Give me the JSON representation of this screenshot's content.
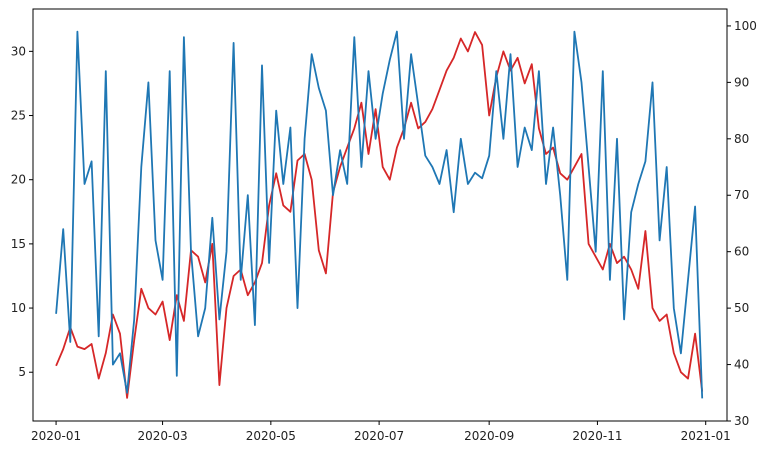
{
  "chart_data": {
    "type": "line",
    "title": "",
    "xlabel": "",
    "ylabel": "",
    "y2label": "",
    "grid": false,
    "xlim": [
      "2019-12-19",
      "2021-01-13"
    ],
    "ylim_left": [
      1.2,
      33.3
    ],
    "ylim_right": [
      30,
      103
    ],
    "x_ticks": [
      "2020-01",
      "2020-03",
      "2020-05",
      "2020-07",
      "2020-09",
      "2020-11",
      "2021-01"
    ],
    "x_tick_dates": [
      "2020-01-01",
      "2020-03-01",
      "2020-05-01",
      "2020-07-01",
      "2020-09-01",
      "2020-11-01",
      "2021-01-01"
    ],
    "y_ticks_left": [
      5,
      10,
      15,
      20,
      25,
      30
    ],
    "y_ticks_right": [
      30,
      40,
      50,
      60,
      70,
      80,
      90,
      100
    ],
    "x": [
      "2020-01-01",
      "2020-01-05",
      "2020-01-09",
      "2020-01-13",
      "2020-01-17",
      "2020-01-21",
      "2020-01-25",
      "2020-01-29",
      "2020-02-02",
      "2020-02-06",
      "2020-02-10",
      "2020-02-14",
      "2020-02-18",
      "2020-02-22",
      "2020-02-26",
      "2020-03-01",
      "2020-03-05",
      "2020-03-09",
      "2020-03-13",
      "2020-03-17",
      "2020-03-21",
      "2020-03-25",
      "2020-03-29",
      "2020-04-02",
      "2020-04-06",
      "2020-04-10",
      "2020-04-14",
      "2020-04-18",
      "2020-04-22",
      "2020-04-26",
      "2020-04-30",
      "2020-05-04",
      "2020-05-08",
      "2020-05-12",
      "2020-05-16",
      "2020-05-20",
      "2020-05-24",
      "2020-05-28",
      "2020-06-01",
      "2020-06-05",
      "2020-06-09",
      "2020-06-13",
      "2020-06-17",
      "2020-06-21",
      "2020-06-25",
      "2020-06-29",
      "2020-07-03",
      "2020-07-07",
      "2020-07-11",
      "2020-07-15",
      "2020-07-19",
      "2020-07-23",
      "2020-07-27",
      "2020-07-31",
      "2020-08-04",
      "2020-08-08",
      "2020-08-12",
      "2020-08-16",
      "2020-08-20",
      "2020-08-24",
      "2020-08-28",
      "2020-09-01",
      "2020-09-05",
      "2020-09-09",
      "2020-09-13",
      "2020-09-17",
      "2020-09-21",
      "2020-09-25",
      "2020-09-29",
      "2020-10-03",
      "2020-10-07",
      "2020-10-11",
      "2020-10-15",
      "2020-10-19",
      "2020-10-23",
      "2020-10-27",
      "2020-10-31",
      "2020-11-04",
      "2020-11-08",
      "2020-11-12",
      "2020-11-16",
      "2020-11-20",
      "2020-11-24",
      "2020-11-28",
      "2020-12-02",
      "2020-12-06",
      "2020-12-10",
      "2020-12-14",
      "2020-12-18",
      "2020-12-22",
      "2020-12-26",
      "2020-12-30"
    ],
    "series": [
      {
        "axis": "left",
        "color": "#d62728",
        "values": [
          5.5,
          6.8,
          8.5,
          7.0,
          6.8,
          7.2,
          4.5,
          6.5,
          9.5,
          8.0,
          3.0,
          7.5,
          11.5,
          10.0,
          9.5,
          10.5,
          7.5,
          11.0,
          9.0,
          14.5,
          14.0,
          12.0,
          15.0,
          4.0,
          10.0,
          12.5,
          13.0,
          11.0,
          12.0,
          13.5,
          18.0,
          20.5,
          18.0,
          17.5,
          21.5,
          22.0,
          20.0,
          14.5,
          12.7,
          19.0,
          21.0,
          22.5,
          24.0,
          26.0,
          22.0,
          25.5,
          21.0,
          20.0,
          22.5,
          24.0,
          26.0,
          24.0,
          24.5,
          25.5,
          27.0,
          28.5,
          29.5,
          31.0,
          30.0,
          31.5,
          30.5,
          25.0,
          28.0,
          30.0,
          28.5,
          29.5,
          27.5,
          29.0,
          24.0,
          22.0,
          22.5,
          20.5,
          20.0,
          21.0,
          22.0,
          15.0,
          14.0,
          13.0,
          15.0,
          13.5,
          14.0,
          13.0,
          11.5,
          16.0,
          10.0,
          9.0,
          9.5,
          6.5,
          5.0,
          4.5,
          8.0,
          3.5
        ]
      },
      {
        "axis": "right",
        "color": "#1f77b4",
        "values": [
          49,
          64,
          44,
          99,
          72,
          76,
          45,
          92,
          40,
          42,
          35,
          48,
          75,
          90,
          62,
          55,
          92,
          38,
          98,
          60,
          45,
          50,
          66,
          48,
          60,
          97,
          55,
          70,
          47,
          93,
          58,
          85,
          72,
          82,
          50,
          80,
          95,
          89,
          85,
          70,
          78,
          72,
          98,
          75,
          92,
          80,
          88,
          94,
          99,
          80,
          95,
          86,
          77,
          75,
          72,
          78,
          67,
          80,
          72,
          74,
          73,
          77,
          92,
          80,
          95,
          75,
          82,
          78,
          92,
          72,
          82,
          70,
          55,
          99,
          90,
          75,
          60,
          92,
          55,
          80,
          48,
          67,
          72,
          76,
          90,
          62,
          75,
          50,
          42,
          55,
          68,
          34
        ]
      }
    ]
  }
}
